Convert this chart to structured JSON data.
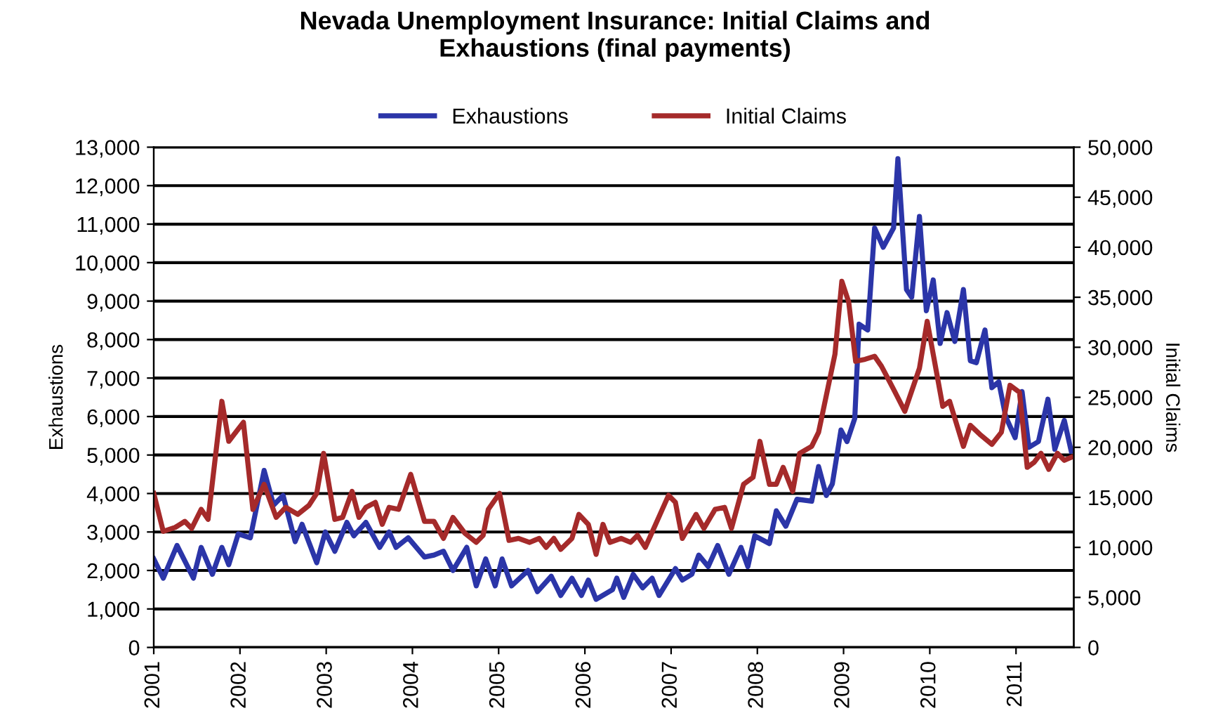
{
  "chart_data": {
    "type": "line",
    "title": "Nevada Unemployment Insurance: Initial Claims and\nExhaustions (final payments)",
    "ylabel": "Exhaustions",
    "y2label": "Initial Claims",
    "xlim": [
      2001,
      2011.67
    ],
    "xticks": [
      2001,
      2002,
      2003,
      2004,
      2005,
      2006,
      2007,
      2008,
      2009,
      2010,
      2011
    ],
    "ylim": [
      0,
      13000
    ],
    "yticks": [
      0,
      {
        "value": 1000,
        "label": "1,000"
      },
      {
        "value": 2000,
        "label": "2,000"
      },
      {
        "value": 3000,
        "label": "3,000"
      },
      {
        "value": 4000,
        "label": "4,000"
      },
      {
        "value": 5000,
        "label": "5,000"
      },
      {
        "value": 6000,
        "label": "6,000"
      },
      {
        "value": 7000,
        "label": "7,000"
      },
      {
        "value": 8000,
        "label": "8,000"
      },
      {
        "value": 9000,
        "label": "9,000"
      },
      {
        "value": 10000,
        "label": "10,000"
      },
      {
        "value": 11000,
        "label": "11,000"
      },
      {
        "value": 12000,
        "label": "12,000"
      },
      {
        "value": 13000,
        "label": "13,000"
      }
    ],
    "y2lim": [
      0,
      50000
    ],
    "y2ticks": [
      0,
      {
        "value": 5000,
        "label": "5,000"
      },
      {
        "value": 10000,
        "label": "10,000"
      },
      {
        "value": 15000,
        "label": "15,000"
      },
      {
        "value": 20000,
        "label": "20,000"
      },
      {
        "value": 25000,
        "label": "25,000"
      },
      {
        "value": 30000,
        "label": "30,000"
      },
      {
        "value": 35000,
        "label": "35,000"
      },
      {
        "value": 40000,
        "label": "40,000"
      },
      {
        "value": 45000,
        "label": "45,000"
      },
      {
        "value": 50000,
        "label": "50,000"
      }
    ],
    "grid": "y",
    "legend": "top",
    "marker": "none",
    "line_style": "solid",
    "series": [
      {
        "name": "Exhaustions",
        "color": "#2b35a8",
        "x": [
          2001.0,
          2001.11,
          2001.27,
          2001.46,
          2001.55,
          2001.68,
          2001.79,
          2001.87,
          2001.98,
          2002.12,
          2002.28,
          2002.39,
          2002.5,
          2002.64,
          2002.72,
          2002.89,
          2002.99,
          2003.1,
          2003.24,
          2003.32,
          2003.46,
          2003.62,
          2003.73,
          2003.81,
          2003.95,
          2004.14,
          2004.25,
          2004.36,
          2004.47,
          2004.63,
          2004.74,
          2004.85,
          2004.96,
          2005.04,
          2005.15,
          2005.34,
          2005.45,
          2005.61,
          2005.72,
          2005.85,
          2005.96,
          2006.04,
          2006.13,
          2006.32,
          2006.37,
          2006.45,
          2006.56,
          2006.67,
          2006.78,
          2006.86,
          2007.05,
          2007.13,
          2007.24,
          2007.32,
          2007.43,
          2007.54,
          2007.67,
          2007.81,
          2007.89,
          2007.97,
          2008.14,
          2008.22,
          2008.33,
          2008.46,
          2008.63,
          2008.71,
          2008.8,
          2008.87,
          2008.97,
          2009.04,
          2009.13,
          2009.18,
          2009.28,
          2009.36,
          2009.46,
          2009.58,
          2009.63,
          2009.73,
          2009.79,
          2009.88,
          2009.96,
          2010.04,
          2010.12,
          2010.2,
          2010.29,
          2010.39,
          2010.47,
          2010.54,
          2010.64,
          2010.72,
          2010.8,
          2010.88,
          2010.99,
          2011.07,
          2011.15,
          2011.26,
          2011.37,
          2011.45,
          2011.56,
          2011.64
        ],
        "values": [
          2300,
          1800,
          2650,
          1800,
          2600,
          1900,
          2600,
          2150,
          2950,
          2850,
          4600,
          3700,
          3950,
          2750,
          3200,
          2200,
          3000,
          2500,
          3250,
          2900,
          3250,
          2600,
          3000,
          2600,
          2850,
          2350,
          2400,
          2500,
          2000,
          2600,
          1600,
          2300,
          1600,
          2300,
          1600,
          2000,
          1450,
          1850,
          1350,
          1800,
          1350,
          1750,
          1250,
          1500,
          1800,
          1300,
          1900,
          1550,
          1800,
          1350,
          2050,
          1750,
          1900,
          2400,
          2100,
          2650,
          1900,
          2600,
          2100,
          2900,
          2700,
          3550,
          3150,
          3850,
          3800,
          4700,
          3950,
          4250,
          5650,
          5350,
          5950,
          8400,
          8250,
          10900,
          10400,
          10900,
          12700,
          9300,
          9100,
          11200,
          8750,
          9550,
          7900,
          8700,
          7950,
          9300,
          7450,
          7400,
          8250,
          6750,
          6900,
          6000,
          5450,
          6650,
          5200,
          5350,
          6450,
          5150,
          5900,
          5100
        ]
      },
      {
        "name": "Initial Claims",
        "color": "#a52a2a",
        "axis": "y2",
        "x": [
          2001.0,
          2001.11,
          2001.25,
          2001.36,
          2001.44,
          2001.55,
          2001.63,
          2001.79,
          2001.87,
          2002.04,
          2002.15,
          2002.28,
          2002.42,
          2002.53,
          2002.67,
          2002.8,
          2002.89,
          2002.97,
          2003.1,
          2003.19,
          2003.3,
          2003.38,
          2003.46,
          2003.57,
          2003.65,
          2003.73,
          2003.84,
          2003.98,
          2004.14,
          2004.25,
          2004.36,
          2004.47,
          2004.61,
          2004.74,
          2004.82,
          2004.88,
          2005.01,
          2005.12,
          2005.23,
          2005.36,
          2005.47,
          2005.55,
          2005.64,
          2005.72,
          2005.85,
          2005.93,
          2006.04,
          2006.13,
          2006.21,
          2006.29,
          2006.42,
          2006.53,
          2006.61,
          2006.7,
          2006.8,
          2006.97,
          2007.05,
          2007.13,
          2007.29,
          2007.38,
          2007.51,
          2007.62,
          2007.7,
          2007.84,
          2007.95,
          2008.03,
          2008.14,
          2008.22,
          2008.3,
          2008.41,
          2008.49,
          2008.63,
          2008.71,
          2008.82,
          2008.9,
          2008.98,
          2009.06,
          2009.14,
          2009.25,
          2009.36,
          2009.44,
          2009.58,
          2009.71,
          2009.88,
          2009.97,
          2010.04,
          2010.15,
          2010.23,
          2010.39,
          2010.47,
          2010.58,
          2010.72,
          2010.83,
          2010.93,
          2011.04,
          2011.13,
          2011.21,
          2011.29,
          2011.38,
          2011.48,
          2011.56,
          2011.64
        ],
        "values": [
          15400,
          11600,
          12000,
          12600,
          11900,
          13800,
          12800,
          24600,
          20600,
          22500,
          13800,
          16300,
          13000,
          14000,
          13300,
          14200,
          15400,
          19400,
          12800,
          13000,
          15600,
          13000,
          14000,
          14500,
          12300,
          14000,
          13800,
          17300,
          12600,
          12600,
          10900,
          13000,
          11400,
          10500,
          11200,
          13800,
          15400,
          10700,
          10900,
          10500,
          10900,
          10000,
          10900,
          9800,
          10900,
          13300,
          12300,
          9300,
          12300,
          10500,
          10900,
          10500,
          11200,
          10000,
          11900,
          15200,
          14500,
          10900,
          13300,
          11900,
          13800,
          14000,
          11900,
          16300,
          17000,
          20600,
          16300,
          16300,
          18000,
          15600,
          19400,
          20100,
          21500,
          26000,
          29300,
          36600,
          34500,
          28600,
          28800,
          29100,
          28100,
          25800,
          23600,
          27900,
          32600,
          29300,
          24100,
          24600,
          20100,
          22200,
          21300,
          20300,
          21500,
          26200,
          25500,
          18000,
          18500,
          19400,
          17800,
          19400,
          18700,
          19000
        ]
      }
    ]
  }
}
